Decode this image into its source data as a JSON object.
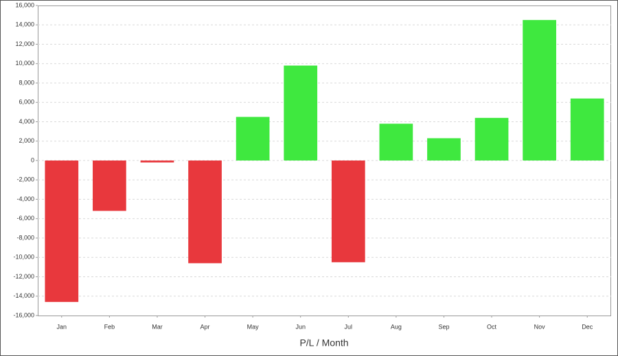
{
  "chart_data": {
    "type": "bar",
    "x_label": "P/L / Month",
    "categories": [
      "Jan",
      "Feb",
      "Mar",
      "Apr",
      "May",
      "Jun",
      "Jul",
      "Aug",
      "Sep",
      "Oct",
      "Nov",
      "Dec"
    ],
    "values": [
      -14600,
      -5200,
      -200,
      -10600,
      4500,
      9800,
      -10500,
      3800,
      2300,
      4400,
      14500,
      6400
    ],
    "positive_color": "#3fe83f",
    "negative_color": "#e8383d",
    "ylim": [
      -16000,
      16000
    ],
    "yticks": [
      {
        "value": -16000,
        "label": "-16,000"
      },
      {
        "value": -14000,
        "label": "-14,000"
      },
      {
        "value": -12000,
        "label": "-12,000"
      },
      {
        "value": -10000,
        "label": "-10,000"
      },
      {
        "value": -8000,
        "label": "-8,000"
      },
      {
        "value": -6000,
        "label": "-6,000"
      },
      {
        "value": -4000,
        "label": "-4,000"
      },
      {
        "value": -2000,
        "label": "-2,000"
      },
      0,
      {
        "value": 2000,
        "label": "2,000"
      },
      {
        "value": 4000,
        "label": "4,000"
      },
      {
        "value": 6000,
        "label": "6,000"
      },
      {
        "value": 8000,
        "label": "8,000"
      },
      {
        "value": 10000,
        "label": "10,000"
      },
      {
        "value": 12000,
        "label": "12,000"
      },
      {
        "value": 14000,
        "label": "14,000"
      },
      {
        "value": 16000,
        "label": "16,000"
      }
    ],
    "grid": true
  }
}
